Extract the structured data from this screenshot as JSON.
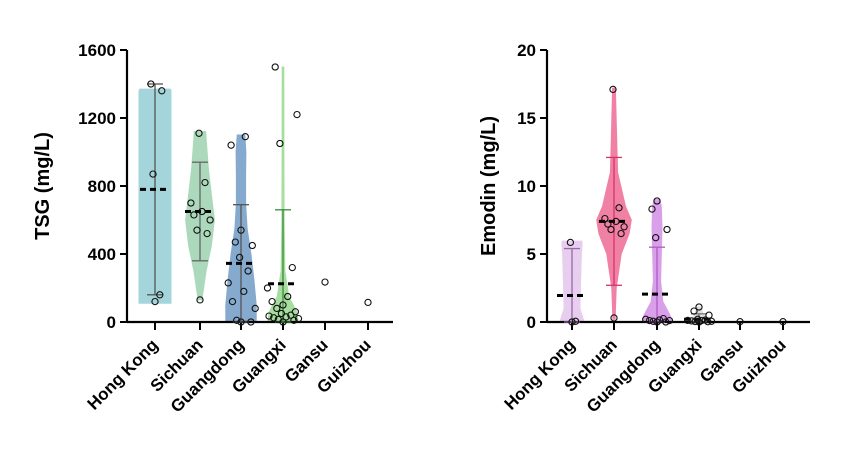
{
  "chart_data": [
    {
      "type": "violin",
      "ylabel": "TSG (mg/L)",
      "xlabel": "",
      "ylim": [
        0,
        1600
      ],
      "yticks": [
        0,
        400,
        800,
        1200,
        1600
      ],
      "categories": [
        "Hong Kong",
        "Sichuan",
        "Guangdong",
        "Guangxi",
        "Gansu",
        "Guizhou"
      ],
      "groups": [
        {
          "name": "Hong Kong",
          "color": "#9fd3da",
          "stroke": "#555555",
          "points": [
            120,
            160,
            870,
            1360,
            1400
          ],
          "mean": 780,
          "err_low": 160,
          "err_high": 1400,
          "violin": [
            [
              110,
              0.42
            ],
            [
              400,
              0.42
            ],
            [
              800,
              0.42
            ],
            [
              1100,
              0.42
            ],
            [
              1360,
              0.42
            ],
            [
              1370,
              0.4
            ]
          ]
        },
        {
          "name": "Sichuan",
          "color": "#a8d8b9",
          "stroke": "#666666",
          "points": [
            130,
            520,
            540,
            600,
            630,
            650,
            700,
            820,
            1110
          ],
          "mean": 650,
          "err_low": 360,
          "err_high": 940,
          "violin": [
            [
              130,
              0.05
            ],
            [
              300,
              0.16
            ],
            [
              450,
              0.3
            ],
            [
              600,
              0.38
            ],
            [
              750,
              0.3
            ],
            [
              900,
              0.22
            ],
            [
              1050,
              0.17
            ],
            [
              1120,
              0.15
            ]
          ]
        },
        {
          "name": "Guangdong",
          "color": "#7fa6cc",
          "stroke": "#555555",
          "points": [
            0,
            0,
            10,
            80,
            120,
            180,
            230,
            300,
            380,
            450,
            470,
            540,
            1040,
            1090
          ],
          "mean": 345,
          "err_low": 0,
          "err_high": 690,
          "violin": [
            [
              0,
              0.4
            ],
            [
              100,
              0.4
            ],
            [
              250,
              0.34
            ],
            [
              400,
              0.26
            ],
            [
              550,
              0.16
            ],
            [
              700,
              0.12
            ],
            [
              850,
              0.12
            ],
            [
              1000,
              0.13
            ],
            [
              1100,
              0.1
            ]
          ]
        },
        {
          "name": "Guangxi",
          "color": "#a3dd9b",
          "stroke": "#3a8a3a",
          "points": [
            0,
            10,
            15,
            20,
            25,
            30,
            35,
            40,
            50,
            60,
            80,
            100,
            120,
            150,
            200,
            320,
            1050,
            1220,
            1500
          ],
          "mean": 225,
          "err_low": 0,
          "err_high": 660,
          "violin": [
            [
              0,
              0.4
            ],
            [
              60,
              0.36
            ],
            [
              150,
              0.15
            ],
            [
              300,
              0.05
            ],
            [
              600,
              0.03
            ],
            [
              1000,
              0.025
            ],
            [
              1500,
              0.02
            ]
          ]
        },
        {
          "name": "Gansu",
          "color": "#bbbbbb",
          "stroke": "#444444",
          "points": [
            235
          ],
          "mean": null,
          "err_low": null,
          "err_high": null,
          "violin": []
        },
        {
          "name": "Guizhou",
          "color": "#bbbbbb",
          "stroke": "#444444",
          "points": [
            115
          ],
          "mean": null,
          "err_low": null,
          "err_high": null,
          "violin": []
        }
      ]
    },
    {
      "type": "violin",
      "ylabel": "Emodin (mg/L)",
      "xlabel": "",
      "ylim": [
        0,
        20
      ],
      "yticks": [
        0,
        5,
        10,
        15,
        20
      ],
      "categories": [
        "Hong Kong",
        "Sichuan",
        "Guangdong",
        "Guangxi",
        "Gansu",
        "Guizhou"
      ],
      "groups": [
        {
          "name": "Hong Kong",
          "color": "#e6ccef",
          "stroke": "#9a6aa8",
          "points": [
            0,
            0.05,
            5.85
          ],
          "mean": 1.95,
          "err_low": 0,
          "err_high": 5.4,
          "violin": [
            [
              0,
              0.34
            ],
            [
              1,
              0.22
            ],
            [
              3,
              0.24
            ],
            [
              5,
              0.26
            ],
            [
              5.8,
              0.28
            ],
            [
              5.95,
              0.27
            ]
          ]
        },
        {
          "name": "Sichuan",
          "color": "#f07aa0",
          "stroke": "#d6336b",
          "points": [
            0.3,
            6.5,
            6.8,
            7.0,
            7.2,
            7.4,
            7.6,
            8.4,
            17.1
          ],
          "mean": 7.4,
          "err_low": 2.7,
          "err_high": 12.1,
          "violin": [
            [
              0.2,
              0.03
            ],
            [
              2.5,
              0.06
            ],
            [
              5,
              0.2
            ],
            [
              6.5,
              0.42
            ],
            [
              7.5,
              0.48
            ],
            [
              8.5,
              0.32
            ],
            [
              11,
              0.1
            ],
            [
              14,
              0.07
            ],
            [
              17.2,
              0.04
            ]
          ]
        },
        {
          "name": "Guangdong",
          "color": "#d89ae8",
          "stroke": "#b05cc8",
          "points": [
            0,
            0,
            0.05,
            0.1,
            0.1,
            0.15,
            0.2,
            0.25,
            6.2,
            6.8,
            8.3,
            8.9
          ],
          "mean": 2.05,
          "err_low": 0,
          "err_high": 5.5,
          "violin": [
            [
              0,
              0.42
            ],
            [
              0.5,
              0.36
            ],
            [
              1.5,
              0.16
            ],
            [
              3,
              0.1
            ],
            [
              5,
              0.12
            ],
            [
              7,
              0.14
            ],
            [
              8.5,
              0.12
            ],
            [
              9,
              0.08
            ]
          ]
        },
        {
          "name": "Guangxi",
          "color": "#dddddd",
          "stroke": "#777777",
          "points": [
            0,
            0.02,
            0.04,
            0.05,
            0.08,
            0.1,
            0.12,
            0.15,
            0.2,
            0.5,
            0.8,
            1.1
          ],
          "mean": 0.2,
          "err_low": 0,
          "err_high": 0.6,
          "violin": [
            [
              0,
              0.3
            ],
            [
              0.3,
              0.18
            ],
            [
              0.7,
              0.1
            ],
            [
              1.1,
              0.05
            ]
          ]
        },
        {
          "name": "Gansu",
          "color": "#bbbbbb",
          "stroke": "#444444",
          "points": [
            0.02
          ],
          "mean": null,
          "err_low": null,
          "err_high": null,
          "violin": []
        },
        {
          "name": "Guizhou",
          "color": "#bbbbbb",
          "stroke": "#444444",
          "points": [
            0.02
          ],
          "mean": null,
          "err_low": null,
          "err_high": null,
          "violin": []
        }
      ]
    }
  ]
}
